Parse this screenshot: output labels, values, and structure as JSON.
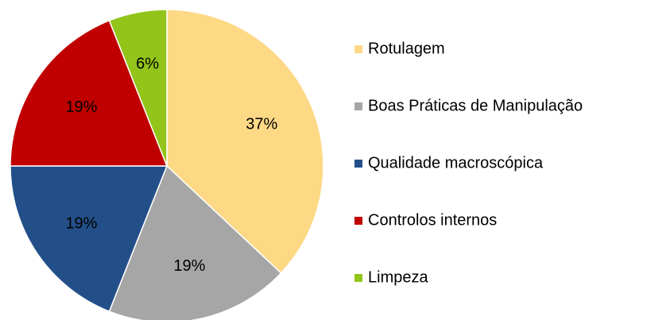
{
  "chart_data": {
    "type": "pie",
    "categories": [
      "Rotulagem",
      "Boas Práticas de Manipulação",
      "Qualidade macroscópica",
      "Controlos internos",
      "Limpeza"
    ],
    "values": [
      37,
      19,
      19,
      19,
      6
    ],
    "value_labels": [
      "37%",
      "19%",
      "19%",
      "19%",
      "6%"
    ],
    "colors": [
      "#fdd986",
      "#a6a6a6",
      "#234f89",
      "#c00000",
      "#92c41a"
    ],
    "legend": "right"
  }
}
